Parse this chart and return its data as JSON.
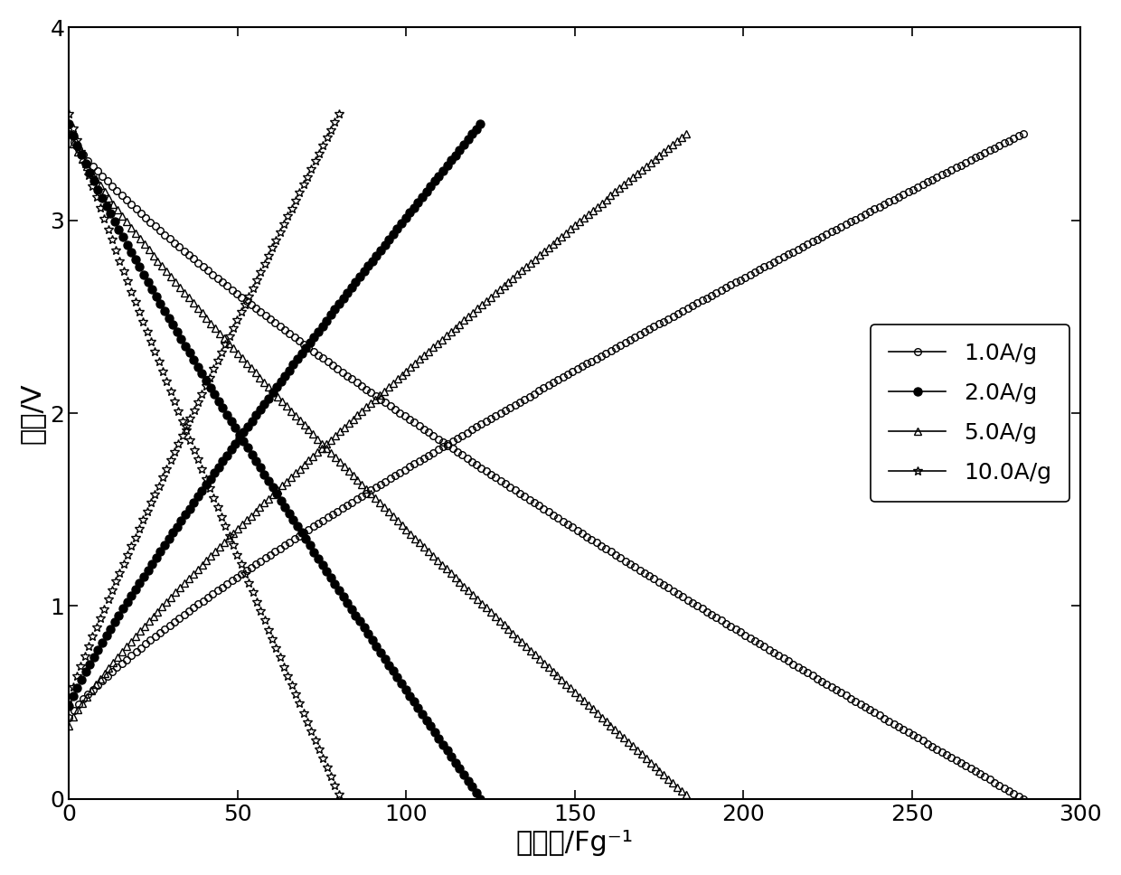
{
  "xlabel": "比电容/Fg⁻¹",
  "ylabel": "电压/V",
  "xlim": [
    0,
    300
  ],
  "ylim": [
    0,
    4
  ],
  "xticks": [
    0,
    50,
    100,
    150,
    200,
    250,
    300
  ],
  "yticks": [
    0,
    1,
    2,
    3,
    4
  ],
  "series": [
    {
      "label": "1.0A/g",
      "max_cap": 283,
      "v_start": 0.42,
      "v_max": 3.45,
      "v_min": 0.0,
      "curve_charge": 0.18,
      "curve_discharge": 0.18,
      "marker": "o",
      "fillstyle": "none",
      "markersize": 5.5,
      "n_points": 200
    },
    {
      "label": "2.0A/g",
      "max_cap": 122,
      "v_start": 0.48,
      "v_max": 3.5,
      "v_min": 0.0,
      "curve_charge": 0.12,
      "curve_discharge": 0.12,
      "marker": "o",
      "fillstyle": "full",
      "markersize": 6.5,
      "n_points": 100
    },
    {
      "label": "5.0A/g",
      "max_cap": 183,
      "v_start": 0.38,
      "v_max": 3.45,
      "v_min": 0.02,
      "curve_charge": 0.15,
      "curve_discharge": 0.15,
      "marker": "^",
      "fillstyle": "none",
      "markersize": 5.5,
      "n_points": 140
    },
    {
      "label": "10.0A/g",
      "max_cap": 80,
      "v_start": 0.52,
      "v_max": 3.55,
      "v_min": 0.02,
      "curve_charge": 0.08,
      "curve_discharge": 0.08,
      "marker": "*",
      "fillstyle": "none",
      "markersize": 7,
      "n_points": 70
    }
  ],
  "legend_fontsize": 18,
  "axis_label_fontsize": 22,
  "tick_fontsize": 18,
  "background_color": "white",
  "linewidth": 1.2
}
